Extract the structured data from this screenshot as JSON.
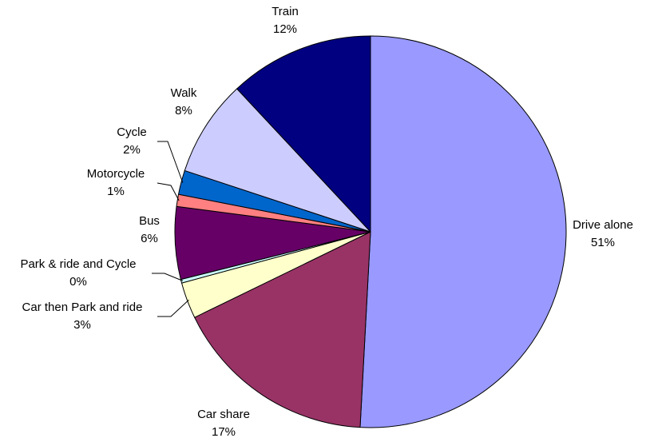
{
  "chart_data": {
    "type": "pie",
    "categories": [
      "Drive alone",
      "Car share",
      "Car then Park and ride",
      "Park & ride and Cycle",
      "Bus",
      "Motorcycle",
      "Cycle",
      "Walk",
      "Train"
    ],
    "values": [
      51,
      17,
      3,
      0.3,
      6,
      1,
      2,
      8,
      12
    ],
    "value_labels": [
      "51%",
      "17%",
      "3%",
      "0%",
      "6%",
      "1%",
      "2%",
      "8%",
      "12%"
    ],
    "colors": [
      "#9999ff",
      "#993366",
      "#ffffcc",
      "#ccffff",
      "#660066",
      "#ff8080",
      "#0066cc",
      "#ccccff",
      "#000080"
    ]
  }
}
